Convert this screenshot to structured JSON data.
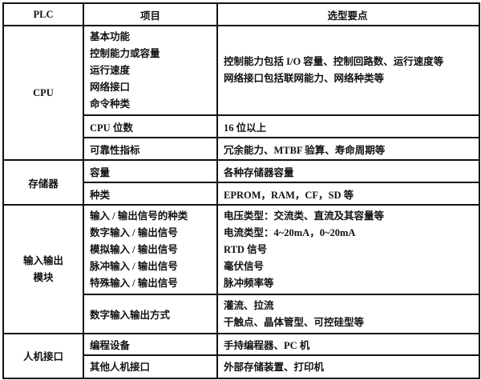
{
  "header": {
    "col1": "PLC",
    "col2": "项目",
    "col3": "选型要点"
  },
  "groups": [
    {
      "name": "CPU",
      "rows": [
        {
          "items": [
            "基本功能",
            "控制能力或容量",
            "运行速度",
            "网络接口",
            "命令种类"
          ],
          "points": [
            "控制能力包括 I/O 容量、控制回路数、运行速度等",
            "网络接口包括联网能力、网络种类等"
          ]
        },
        {
          "items": [
            "CPU 位数"
          ],
          "points": [
            "16 位以上"
          ]
        },
        {
          "items": [
            "可靠性指标"
          ],
          "points": [
            "冗余能力、MTBF 验算、寿命周期等"
          ]
        }
      ]
    },
    {
      "name": "存储器",
      "rows": [
        {
          "items": [
            "容量"
          ],
          "points": [
            "各种存储器容量"
          ]
        },
        {
          "items": [
            "种类"
          ],
          "points": [
            "EPROM，RAM，CF，SD 等"
          ]
        }
      ]
    },
    {
      "name_lines": [
        "输入输出",
        "模块"
      ],
      "rows": [
        {
          "items": [
            "输入 / 输出信号的种类",
            "数字输入 / 输出信号",
            "模拟输入 / 输出信号",
            "脉冲输入 / 输出信号",
            "特殊输入 / 输出信号"
          ],
          "points": [
            "电压类型：交流类、直流及其容量等",
            "电流类型：4~20mA，0~20mA",
            "RTD 信号",
            "毫伏信号",
            "脉冲频率等"
          ]
        },
        {
          "items": [
            "数字输入输出方式"
          ],
          "points": [
            "灌流、拉流",
            "干触点、晶体管型、可控硅型等"
          ]
        }
      ]
    },
    {
      "name": "人机接口",
      "rows": [
        {
          "items": [
            "编程设备"
          ],
          "points": [
            "手持编程器、PC 机"
          ]
        },
        {
          "items": [
            "其他人机接口"
          ],
          "points": [
            "外部存储装置、打印机"
          ]
        }
      ]
    }
  ]
}
